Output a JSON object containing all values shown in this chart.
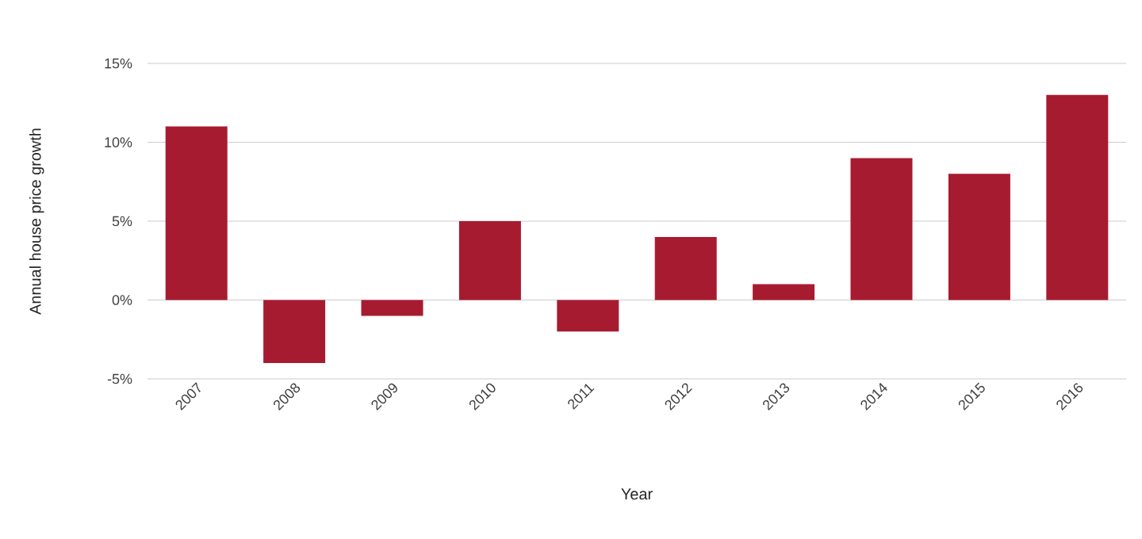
{
  "chart_data": {
    "type": "bar",
    "xlabel": "Year",
    "ylabel": "Annual house price growth",
    "categories": [
      "2007",
      "2008",
      "2009",
      "2010",
      "2011",
      "2012",
      "2013",
      "2014",
      "2015",
      "2016"
    ],
    "values": [
      11,
      -4,
      -1,
      5,
      -2,
      4,
      1,
      9,
      8,
      13
    ],
    "color": "#a71b30",
    "ylim": [
      -5,
      15
    ],
    "yticks": [
      {
        "value": -5,
        "label": "-5%"
      },
      {
        "value": 0,
        "label": "0%"
      },
      {
        "value": 5,
        "label": "5%"
      },
      {
        "value": 10,
        "label": "10%"
      },
      {
        "value": 15,
        "label": "15%"
      }
    ],
    "grid": "y"
  }
}
